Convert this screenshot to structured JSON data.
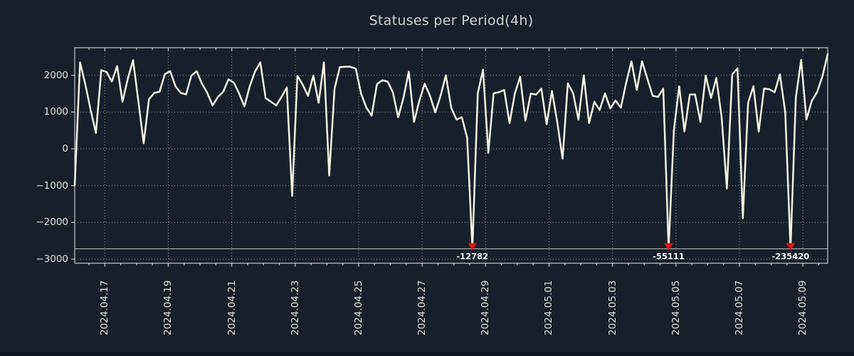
{
  "title": "Statuses per Period(4h)",
  "chart_data": {
    "type": "line",
    "title": "Statuses per Period(4h)",
    "period": "4h",
    "x_axis": {
      "tick_labels": [
        "2024.04.17",
        "2024.04.19",
        "2024.04.21",
        "2024.04.23",
        "2024.04.25",
        "2024.04.27",
        "2024.04.29",
        "2024.05.01",
        "2024.05.03",
        "2024.05.05",
        "2024.05.07",
        "2024.05.09"
      ],
      "major_tick_every_days": 2,
      "minor_tick_every_hours": 12
    },
    "y_axis": {
      "ticks": [
        {
          "value": 2000,
          "label": "2000"
        },
        {
          "value": 1000,
          "label": "1000"
        },
        {
          "value": 0,
          "label": "0"
        },
        {
          "value": -1000,
          "label": "−1000"
        },
        {
          "value": -2000,
          "label": "−2000"
        },
        {
          "value": -3000,
          "label": "−3000"
        }
      ]
    },
    "ylim": [
      -3110,
      2749
    ],
    "grid": true,
    "legend": false,
    "clip_value": -2716,
    "series": [
      {
        "name": "statuses",
        "values": [
          -1000,
          2350,
          1750,
          1050,
          430,
          2140,
          2090,
          1830,
          2250,
          1280,
          1900,
          2410,
          1300,
          150,
          1350,
          1520,
          1550,
          2030,
          2110,
          1700,
          1520,
          1480,
          1990,
          2110,
          1770,
          1520,
          1180,
          1410,
          1550,
          1890,
          1800,
          1507,
          1150,
          1700,
          2100,
          2350,
          1380,
          1280,
          1180,
          1410,
          1670,
          -1280,
          1990,
          1740,
          1440,
          1990,
          1250,
          2350,
          -726,
          1637,
          2220,
          2230,
          2230,
          2180,
          1507,
          1120,
          900,
          1760,
          1864,
          1830,
          1540,
          860,
          1380,
          2100,
          730,
          1313,
          1770,
          1443,
          990,
          1443,
          2000,
          1120,
          795,
          860,
          300,
          -12782,
          1500,
          2150,
          -110,
          1510,
          1540,
          1600,
          700,
          1500,
          1960,
          763,
          1500,
          1475,
          1637,
          666,
          1573,
          730,
          -272,
          1780,
          1507,
          795,
          2000,
          700,
          1280,
          1055,
          1507,
          1100,
          1313,
          1120,
          1800,
          2380,
          1600,
          2380,
          1900,
          1443,
          1410,
          1637,
          -55111,
          500,
          1700,
          472,
          1475,
          1480,
          730,
          1990,
          1380,
          1928,
          860,
          -1082,
          2026,
          2187,
          -1891,
          1250,
          1702,
          466,
          1637,
          1620,
          1540,
          2026,
          990,
          -235420,
          1400,
          2414,
          800,
          1300,
          1540,
          1961,
          2575
        ]
      }
    ],
    "annotations": [
      {
        "index": 75,
        "label": "-12782",
        "value": -12782
      },
      {
        "index": 112,
        "label": "-55111",
        "value": -55111
      },
      {
        "index": 135,
        "label": "-235420",
        "value": -235420
      }
    ],
    "colors": {
      "background": "#161f2b",
      "line": "#f7f1de",
      "marker": "#de1414",
      "grid": "#ffffff",
      "axis": "#c9c9c9",
      "title_text": "#d2d2d2",
      "tick_text": "#e9e3d5",
      "annotation_text": "#f5f5f5"
    }
  }
}
